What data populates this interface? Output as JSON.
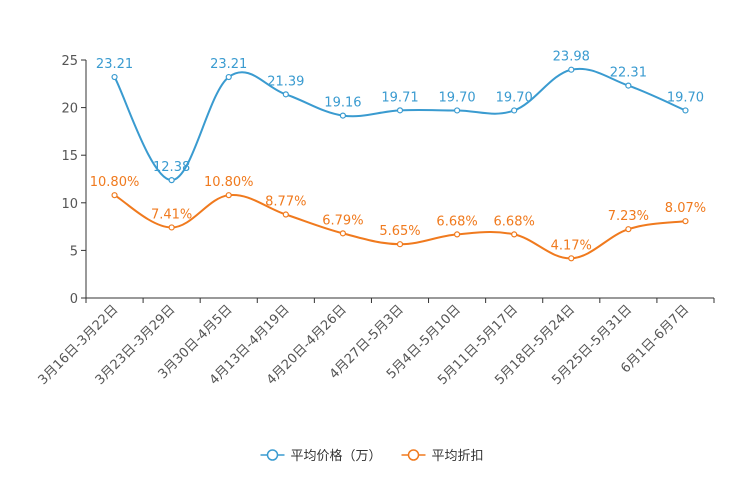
{
  "chart_data": {
    "type": "line",
    "title": "",
    "xlabel": "",
    "ylabel": "",
    "ylim": [
      0,
      25
    ],
    "yticks": [
      0,
      5,
      10,
      15,
      20,
      25
    ],
    "categories": [
      "3月16日-3月22日",
      "3月23日-3月29日",
      "3月30日-4月5日",
      "4月13日-4月19日",
      "4月20日-4月26日",
      "4月27日-5月3日",
      "5月4日-5月10日",
      "5月11日-5月17日",
      "5月18日-5月24日",
      "5月25日-5月31日",
      "6月1日-6月7日"
    ],
    "series": [
      {
        "name": "平均价格（万）",
        "color": "#3a9bd0",
        "values": [
          23.21,
          12.38,
          23.21,
          21.39,
          19.16,
          19.71,
          19.7,
          19.7,
          23.98,
          22.31,
          19.7
        ],
        "labels": [
          "23.21",
          "12.38",
          "23.21",
          "21.39",
          "19.16",
          "19.71",
          "19.70",
          "19.70",
          "23.98",
          "22.31",
          "19.70"
        ]
      },
      {
        "name": "平均折扣",
        "color": "#f07a1e",
        "values": [
          10.8,
          7.41,
          10.8,
          8.77,
          6.79,
          5.65,
          6.68,
          6.68,
          4.17,
          7.23,
          8.07
        ],
        "labels": [
          "10.80%",
          "7.41%",
          "10.80%",
          "8.77%",
          "6.79%",
          "5.65%",
          "6.68%",
          "6.68%",
          "4.17%",
          "7.23%",
          "8.07%"
        ]
      }
    ],
    "legend": {
      "position": "bottom",
      "entries": [
        "平均价格（万）",
        "平均折扣"
      ]
    },
    "grid": false
  }
}
